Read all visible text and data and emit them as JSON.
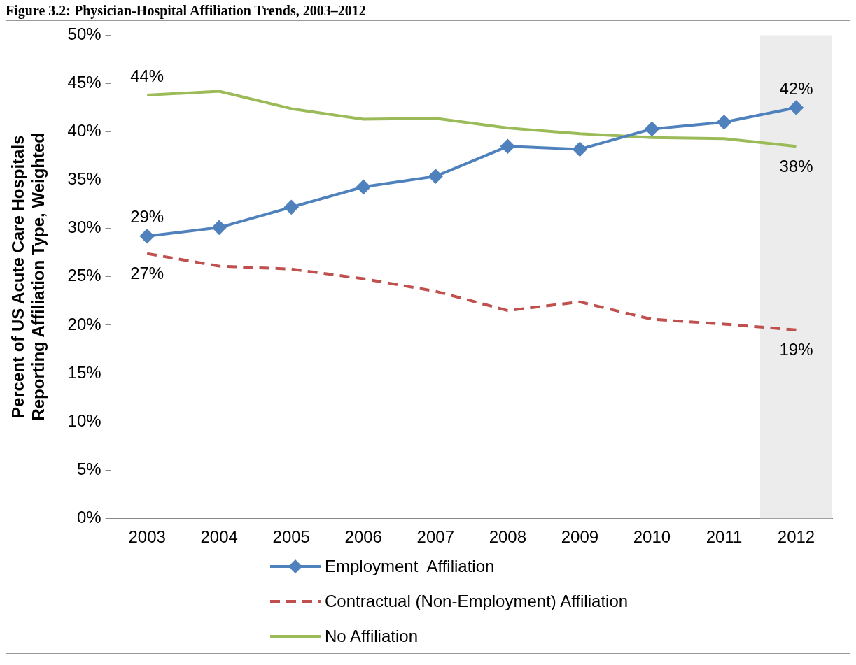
{
  "chart_data": {
    "type": "line",
    "title": "Figure 3.2: Physician-Hospital Affiliation Trends, 2003–2012",
    "ylabel": "Percent of US Acute Care Hospitals Reporting Affiliation Type, Weighted",
    "categories": [
      "2003",
      "2004",
      "2005",
      "2006",
      "2007",
      "2008",
      "2009",
      "2010",
      "2011",
      "2012"
    ],
    "series": [
      {
        "name": "Employment  Affiliation",
        "color": "#4f81bd",
        "marker": "diamond",
        "line_style": "solid",
        "values": [
          29.2,
          30.1,
          32.2,
          34.3,
          35.4,
          38.5,
          38.2,
          40.3,
          41.0,
          42.5
        ],
        "value_labels": [
          "29%",
          null,
          null,
          null,
          null,
          null,
          null,
          null,
          null,
          "42%"
        ]
      },
      {
        "name": "Contractual (Non-Employment) Affiliation",
        "color": "#c0504d",
        "marker": "none",
        "line_style": "dashed",
        "values": [
          27.4,
          26.1,
          25.8,
          24.8,
          23.5,
          21.5,
          22.4,
          20.6,
          20.1,
          19.5
        ],
        "value_labels": [
          "27%",
          null,
          null,
          null,
          null,
          null,
          null,
          null,
          null,
          "19%"
        ]
      },
      {
        "name": "No Affiliation",
        "color": "#9bbb59",
        "marker": "none",
        "line_style": "solid",
        "values": [
          43.8,
          44.2,
          42.4,
          41.3,
          41.4,
          40.4,
          39.8,
          39.4,
          39.3,
          38.5
        ],
        "value_labels": [
          "44%",
          null,
          null,
          null,
          null,
          null,
          null,
          null,
          null,
          "38%"
        ]
      }
    ],
    "ylim": [
      0,
      50
    ],
    "yticks": [
      {
        "value": 0,
        "label": "0%"
      },
      {
        "value": 5,
        "label": "5%"
      },
      {
        "value": 10,
        "label": "10%"
      },
      {
        "value": 15,
        "label": "15%"
      },
      {
        "value": 20,
        "label": "20%"
      },
      {
        "value": 25,
        "label": "25%"
      },
      {
        "value": 30,
        "label": "30%"
      },
      {
        "value": 35,
        "label": "35%"
      },
      {
        "value": 40,
        "label": "40%"
      },
      {
        "value": 45,
        "label": "45%"
      },
      {
        "value": 50,
        "label": "50%"
      }
    ],
    "bands": [
      {
        "axis": "x",
        "from": "2012",
        "to": "2012",
        "color": "#ececec"
      }
    ],
    "grid": false,
    "legend": "bottom"
  }
}
